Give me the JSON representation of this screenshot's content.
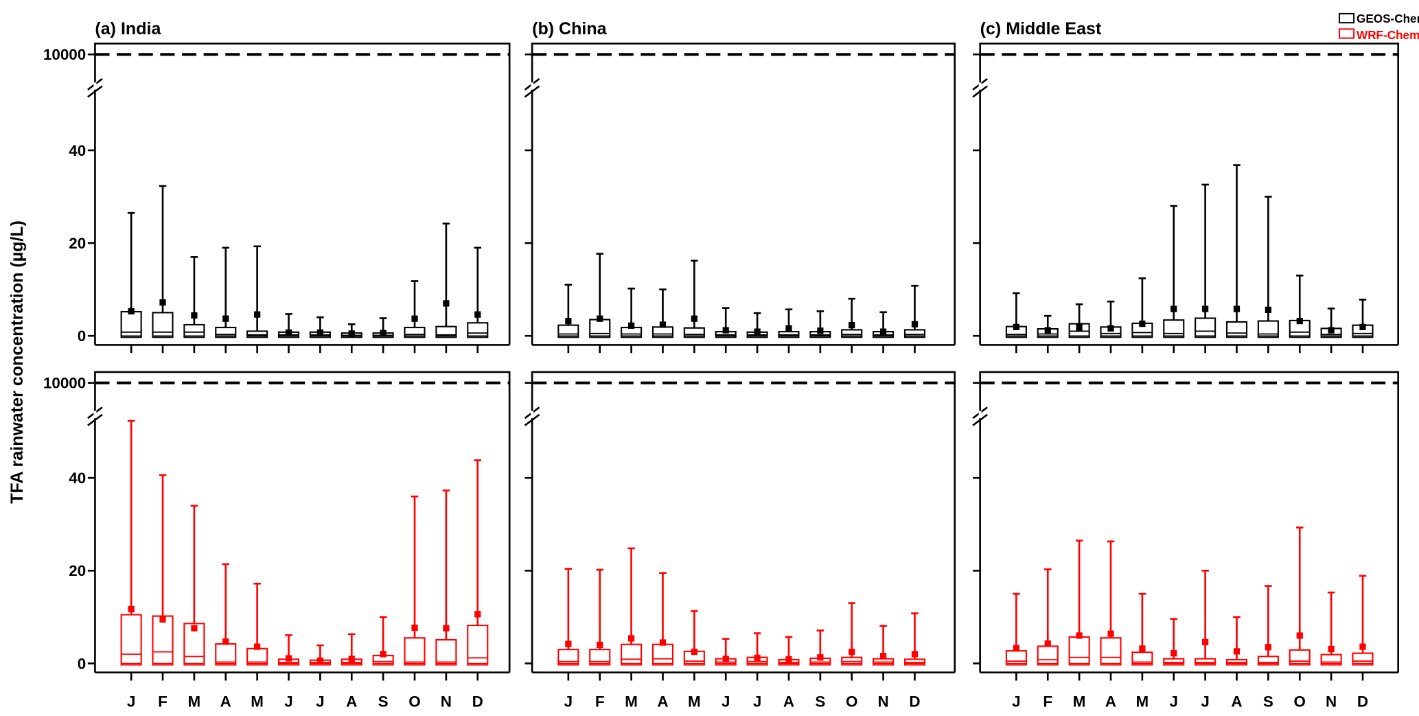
{
  "chart_data": {
    "type": "box",
    "ylabel": "TFA rainwater concentration (µg/L)",
    "yticks": [
      "0",
      "20",
      "40",
      "10000"
    ],
    "ylim_lower_segment": [
      0,
      50
    ],
    "ybreak": "axis break between ~50 and 10000",
    "reference_line": {
      "value": 10000,
      "style": "dashed"
    },
    "months": [
      "J",
      "F",
      "M",
      "A",
      "M",
      "J",
      "J",
      "A",
      "S",
      "O",
      "N",
      "D"
    ],
    "legend": {
      "placement": "top-right",
      "entries": [
        {
          "name": "GEOS-Chem",
          "color": "#000000"
        },
        {
          "name": "WRF-Chem",
          "color": "#ff0000"
        }
      ]
    },
    "stat_fields": [
      "max",
      "q3",
      "median",
      "q1",
      "mean"
    ],
    "panels": [
      {
        "title": "(a) India",
        "series": [
          {
            "name": "GEOS-Chem",
            "stats": [
              [
                26.5,
                5.2,
                0.8,
                -0.3,
                5.3
              ],
              [
                32.3,
                5.0,
                0.8,
                -0.3,
                7.2
              ],
              [
                17,
                2.4,
                0.8,
                -0.3,
                4.4
              ],
              [
                19,
                1.8,
                0.3,
                -0.3,
                3.7
              ],
              [
                19.3,
                1.0,
                0.2,
                -0.3,
                4.6
              ],
              [
                4.7,
                0.8,
                0.2,
                -0.3,
                0.7
              ],
              [
                4.0,
                0.8,
                0.2,
                -0.3,
                0.7
              ],
              [
                2.5,
                0.6,
                0.1,
                -0.3,
                0.5
              ],
              [
                3.8,
                0.6,
                0.1,
                -0.3,
                0.6
              ],
              [
                11.8,
                1.8,
                0.3,
                -0.3,
                3.7
              ],
              [
                24.2,
                2.0,
                0.2,
                -0.3,
                7.0
              ],
              [
                19,
                2.8,
                0.6,
                -0.3,
                4.6
              ]
            ]
          },
          {
            "name": "WRF-Chem",
            "stats": [
              [
                52.3,
                10.5,
                2.0,
                -0.3,
                11.7
              ],
              [
                40.6,
                10.2,
                2.5,
                -0.3,
                9.5
              ],
              [
                34,
                8.6,
                1.5,
                -0.3,
                7.6
              ],
              [
                21.4,
                4.2,
                0.3,
                -0.3,
                4.7
              ],
              [
                17.2,
                3.2,
                0.3,
                -0.3,
                3.6
              ],
              [
                6.1,
                0.9,
                0.2,
                -0.3,
                1.1
              ],
              [
                3.9,
                0.7,
                0.2,
                -0.3,
                0.6
              ],
              [
                6.3,
                0.9,
                0.2,
                -0.3,
                1.0
              ],
              [
                10,
                1.7,
                0.4,
                -0.3,
                2.0
              ],
              [
                36,
                5.5,
                0.3,
                -0.3,
                7.7
              ],
              [
                37.3,
                5.1,
                0.3,
                -0.3,
                7.6
              ],
              [
                43.8,
                8.2,
                1.2,
                -0.3,
                10.6
              ]
            ]
          }
        ]
      },
      {
        "title": "(b) China",
        "series": [
          {
            "name": "GEOS-Chem",
            "stats": [
              [
                11,
                2.3,
                0.4,
                -0.3,
                3.2
              ],
              [
                17.7,
                3.5,
                0.5,
                -0.3,
                3.7
              ],
              [
                10.2,
                1.8,
                0.4,
                -0.3,
                2.2
              ],
              [
                10,
                1.9,
                0.4,
                -0.3,
                2.4
              ],
              [
                16.2,
                1.7,
                0.3,
                -0.3,
                3.7
              ],
              [
                6,
                0.9,
                0.2,
                -0.3,
                1.2
              ],
              [
                4.9,
                0.8,
                0.2,
                -0.3,
                0.9
              ],
              [
                5.7,
                0.9,
                0.2,
                -0.3,
                1.6
              ],
              [
                5.3,
                0.9,
                0.2,
                -0.3,
                1.1
              ],
              [
                8,
                1.3,
                0.3,
                -0.3,
                2.3
              ],
              [
                5.1,
                0.9,
                0.2,
                -0.3,
                0.9
              ],
              [
                10.8,
                1.3,
                0.3,
                -0.3,
                2.5
              ]
            ]
          },
          {
            "name": "WRF-Chem",
            "stats": [
              [
                20.4,
                3.0,
                0.4,
                -0.3,
                4.2
              ],
              [
                20.2,
                3.0,
                0.4,
                -0.3,
                4.0
              ],
              [
                24.8,
                4.1,
                0.9,
                -0.3,
                5.4
              ],
              [
                19.5,
                4.1,
                1.0,
                -0.3,
                4.5
              ],
              [
                11.3,
                2.6,
                0.5,
                -0.3,
                2.5
              ],
              [
                5.3,
                1.0,
                0.3,
                -0.3,
                1.0
              ],
              [
                6.5,
                1.3,
                0.4,
                -0.3,
                1.2
              ],
              [
                5.7,
                0.8,
                0.2,
                -0.3,
                0.9
              ],
              [
                7.1,
                1.1,
                0.3,
                -0.3,
                1.3
              ],
              [
                13,
                1.3,
                0.4,
                -0.3,
                2.5
              ],
              [
                8.1,
                1.0,
                0.3,
                -0.3,
                1.6
              ],
              [
                10.8,
                0.9,
                0.2,
                -0.3,
                2.0
              ]
            ]
          }
        ]
      },
      {
        "title": "(c) Middle East",
        "series": [
          {
            "name": "GEOS-Chem",
            "stats": [
              [
                9.2,
                2.0,
                0.3,
                -0.3,
                1.9
              ],
              [
                4.3,
                1.5,
                0.4,
                -0.3,
                1.2
              ],
              [
                6.8,
                2.6,
                1.0,
                -0.3,
                1.8
              ],
              [
                7.4,
                1.9,
                0.5,
                -0.3,
                1.6
              ],
              [
                12.4,
                2.7,
                0.7,
                -0.3,
                2.6
              ],
              [
                28,
                3.4,
                0.5,
                -0.3,
                5.8
              ],
              [
                32.6,
                3.8,
                1.0,
                -0.3,
                5.8
              ],
              [
                36.8,
                3.0,
                0.6,
                -0.3,
                5.8
              ],
              [
                30,
                3.2,
                0.4,
                -0.3,
                5.6
              ],
              [
                13,
                3.3,
                0.8,
                -0.3,
                3.2
              ],
              [
                5.9,
                1.6,
                0.3,
                -0.3,
                1.2
              ],
              [
                7.8,
                2.3,
                0.5,
                -0.3,
                1.9
              ]
            ]
          },
          {
            "name": "WRF-Chem",
            "stats": [
              [
                15,
                2.7,
                0.5,
                -0.3,
                3.3
              ],
              [
                20.3,
                3.7,
                0.8,
                -0.3,
                4.3
              ],
              [
                26.5,
                5.7,
                1.3,
                -0.3,
                6.0
              ],
              [
                26.3,
                5.5,
                1.3,
                -0.3,
                6.4
              ],
              [
                15,
                2.4,
                0.3,
                -0.3,
                3.2
              ],
              [
                9.6,
                1.0,
                0.2,
                -0.3,
                2.2
              ],
              [
                20,
                1.0,
                0.2,
                -0.3,
                4.6
              ],
              [
                10,
                0.8,
                0.2,
                -0.3,
                2.6
              ],
              [
                16.7,
                1.5,
                0.2,
                -0.3,
                3.5
              ],
              [
                29.3,
                2.9,
                0.5,
                -0.3,
                6.0
              ],
              [
                15.3,
                1.9,
                0.3,
                -0.3,
                3.1
              ],
              [
                18.9,
                2.2,
                0.5,
                -0.3,
                3.6
              ]
            ]
          }
        ]
      }
    ]
  }
}
